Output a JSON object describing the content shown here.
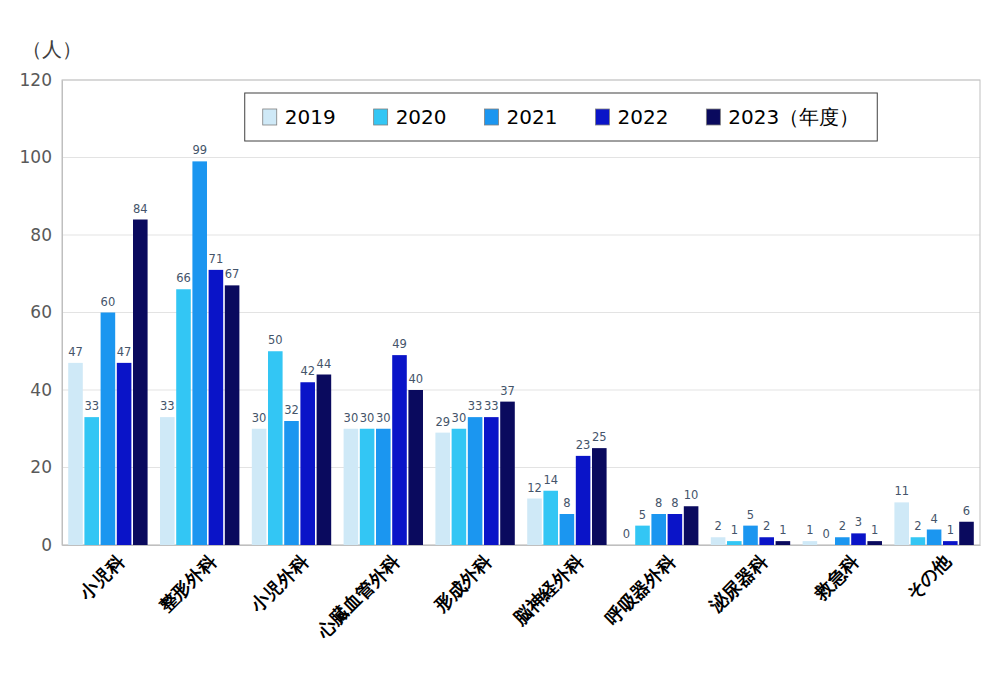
{
  "chart_data": {
    "type": "bar",
    "ylabel": "（人）",
    "categories": [
      "小児科",
      "整形外科",
      "小児外科",
      "心臓血管外科",
      "形成外科",
      "脳神経外科",
      "呼吸器外科",
      "泌尿器科",
      "救急科",
      "その他"
    ],
    "series": [
      {
        "name": "2019",
        "color": "#cfe9f7",
        "values": [
          47,
          33,
          30,
          30,
          29,
          12,
          0,
          2,
          1,
          11
        ]
      },
      {
        "name": "2020",
        "color": "#33c6f4",
        "values": [
          33,
          66,
          50,
          30,
          30,
          14,
          5,
          1,
          0,
          2
        ]
      },
      {
        "name": "2021",
        "color": "#1b96f0",
        "values": [
          60,
          99,
          32,
          30,
          33,
          8,
          8,
          5,
          2,
          4
        ]
      },
      {
        "name": "2022",
        "color": "#0a14c8",
        "values": [
          47,
          71,
          42,
          49,
          33,
          23,
          8,
          2,
          3,
          1
        ]
      },
      {
        "name": "2023（年度）",
        "color": "#0a0a5e",
        "values": [
          84,
          67,
          44,
          40,
          37,
          25,
          10,
          1,
          1,
          6
        ]
      }
    ],
    "ylim": [
      0,
      120
    ],
    "yticks": [
      0,
      20,
      40,
      60,
      80,
      100,
      120
    ],
    "grid": true,
    "legend": "upper center",
    "data_labels": true
  }
}
